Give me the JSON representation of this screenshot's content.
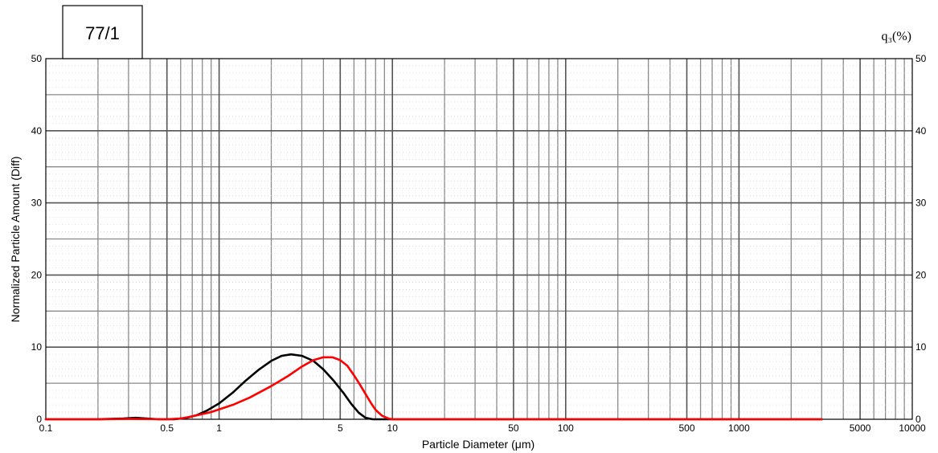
{
  "label_box": "77/1",
  "chart_data": {
    "type": "line",
    "xlabel": "Particle Diameter (μm)",
    "ylabel": "Normalized Particle Amount (Diff)",
    "right_axis_label": "q₃(%)",
    "xscale": "log",
    "xlim": [
      0.1,
      10000
    ],
    "ylim": [
      0,
      50
    ],
    "grid": true,
    "x_ticks": [
      {
        "value": 0.1,
        "label": "0.1"
      },
      {
        "value": 0.5,
        "label": "0.5"
      },
      {
        "value": 1,
        "label": "1"
      },
      {
        "value": 5,
        "label": "5"
      },
      {
        "value": 10,
        "label": "10"
      },
      {
        "value": 50,
        "label": "50"
      },
      {
        "value": 100,
        "label": "100"
      },
      {
        "value": 500,
        "label": "500"
      },
      {
        "value": 1000,
        "label": "1000"
      },
      {
        "value": 5000,
        "label": "5000"
      },
      {
        "value": 10000,
        "label": "10000"
      }
    ],
    "y_ticks": [
      0,
      10,
      20,
      30,
      40,
      50
    ],
    "series": [
      {
        "color": "#000000",
        "points": [
          [
            0.1,
            0
          ],
          [
            0.2,
            0
          ],
          [
            0.28,
            0.1
          ],
          [
            0.33,
            0.2
          ],
          [
            0.38,
            0.1
          ],
          [
            0.45,
            0
          ],
          [
            0.55,
            0
          ],
          [
            0.65,
            0.2
          ],
          [
            0.75,
            0.6
          ],
          [
            0.85,
            1.2
          ],
          [
            1.0,
            2.2
          ],
          [
            1.2,
            3.7
          ],
          [
            1.4,
            5.2
          ],
          [
            1.7,
            6.9
          ],
          [
            2.0,
            8.1
          ],
          [
            2.3,
            8.8
          ],
          [
            2.6,
            9.0
          ],
          [
            3.0,
            8.8
          ],
          [
            3.5,
            8.1
          ],
          [
            4.0,
            6.9
          ],
          [
            4.6,
            5.3
          ],
          [
            5.2,
            3.7
          ],
          [
            5.8,
            2.1
          ],
          [
            6.4,
            0.9
          ],
          [
            7.0,
            0.2
          ],
          [
            7.7,
            0
          ],
          [
            100,
            0
          ],
          [
            3000,
            0
          ]
        ]
      },
      {
        "color": "#ff0000",
        "points": [
          [
            0.1,
            0
          ],
          [
            0.2,
            0
          ],
          [
            0.3,
            0.05
          ],
          [
            0.5,
            0
          ],
          [
            0.6,
            0.1
          ],
          [
            0.7,
            0.4
          ],
          [
            0.9,
            1.0
          ],
          [
            1.2,
            2.0
          ],
          [
            1.5,
            3.0
          ],
          [
            2.0,
            4.6
          ],
          [
            2.5,
            6.0
          ],
          [
            3.0,
            7.3
          ],
          [
            3.5,
            8.2
          ],
          [
            4.0,
            8.6
          ],
          [
            4.5,
            8.6
          ],
          [
            5.0,
            8.2
          ],
          [
            5.5,
            7.4
          ],
          [
            6.0,
            6.1
          ],
          [
            6.5,
            4.8
          ],
          [
            7.0,
            3.5
          ],
          [
            7.5,
            2.3
          ],
          [
            8.0,
            1.3
          ],
          [
            8.7,
            0.5
          ],
          [
            9.5,
            0.1
          ],
          [
            10,
            0
          ],
          [
            100,
            0
          ],
          [
            3000,
            0
          ]
        ]
      }
    ]
  }
}
